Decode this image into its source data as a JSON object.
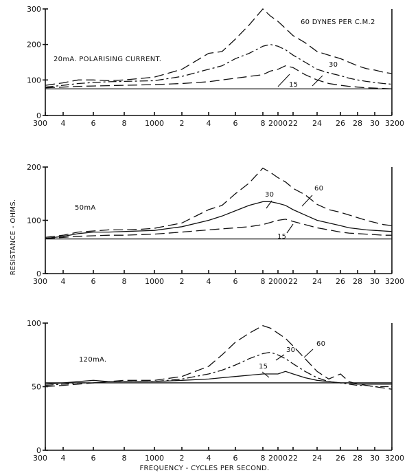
{
  "ylabel": "RESISTANCE - OHMS.",
  "xlabel": "FREQUENCY - CYCLES PER SECOND.",
  "chart_data": [
    {
      "type": "line",
      "annotation": "20mA. POLARISING CURRENT.",
      "x_tick_labels": [
        "300",
        "4",
        "6",
        "8",
        "1000",
        "2",
        "4",
        "6",
        "8",
        "2000",
        "22",
        "24",
        "26",
        "28",
        "30",
        "3200"
      ],
      "xlim": [
        300,
        3200
      ],
      "y_ticks": [
        0,
        100,
        200,
        300
      ],
      "ylim": [
        0,
        300
      ],
      "baseline": 75,
      "series": [
        {
          "name": "60 DYNES PER C.M.2",
          "dash": "long",
          "x": [
            300,
            400,
            500,
            600,
            700,
            800,
            900,
            1000,
            1200,
            1400,
            1500,
            1600,
            1700,
            1800,
            1900,
            2000,
            2100,
            2200,
            2300,
            2400,
            2500,
            2600,
            2700,
            2800,
            2900,
            3000,
            3100,
            3200
          ],
          "y": [
            85,
            92,
            100,
            100,
            98,
            100,
            104,
            108,
            130,
            175,
            180,
            215,
            255,
            300,
            280,
            265,
            245,
            225,
            205,
            180,
            170,
            160,
            150,
            140,
            132,
            128,
            122,
            118
          ]
        },
        {
          "name": "30",
          "dash": "dashdot",
          "x": [
            300,
            400,
            500,
            600,
            700,
            800,
            900,
            1000,
            1200,
            1400,
            1500,
            1600,
            1700,
            1800,
            1900,
            2000,
            2100,
            2200,
            2300,
            2400,
            2500,
            2600,
            2700,
            2800,
            2900,
            3000,
            3100,
            3200
          ],
          "y": [
            80,
            85,
            90,
            93,
            95,
            96,
            97,
            98,
            110,
            130,
            140,
            160,
            175,
            195,
            200,
            195,
            185,
            170,
            150,
            130,
            120,
            112,
            105,
            100,
            96,
            93,
            90,
            88
          ]
        },
        {
          "name": "15",
          "dash": "long",
          "x": [
            300,
            400,
            500,
            600,
            700,
            800,
            900,
            1000,
            1200,
            1400,
            1500,
            1600,
            1700,
            1800,
            1900,
            2000,
            2100,
            2200,
            2300,
            2400,
            2500,
            2600,
            2700,
            2800,
            2900,
            3000,
            3100,
            3200
          ],
          "y": [
            78,
            80,
            82,
            83,
            84,
            85,
            86,
            87,
            90,
            95,
            100,
            105,
            110,
            115,
            125,
            130,
            140,
            135,
            115,
            100,
            90,
            85,
            82,
            80,
            78,
            77,
            76,
            75
          ]
        }
      ]
    },
    {
      "type": "line",
      "annotation": "50mA",
      "x_tick_labels": [
        "300",
        "4",
        "6",
        "8",
        "1000",
        "2",
        "4",
        "6",
        "8",
        "2000",
        "22",
        "24",
        "26",
        "28",
        "30",
        "3200"
      ],
      "xlim": [
        300,
        3200
      ],
      "y_ticks": [
        0,
        100,
        200
      ],
      "ylim": [
        0,
        200
      ],
      "baseline": 65,
      "series": [
        {
          "name": "60",
          "dash": "long",
          "x": [
            300,
            400,
            500,
            600,
            700,
            800,
            900,
            1000,
            1200,
            1400,
            1500,
            1600,
            1700,
            1800,
            1900,
            2000,
            2100,
            2200,
            2300,
            2400,
            2500,
            2600,
            2700,
            2800,
            2900,
            3000,
            3100,
            3200
          ],
          "y": [
            68,
            72,
            78,
            80,
            82,
            82,
            83,
            85,
            95,
            120,
            128,
            150,
            170,
            198,
            190,
            180,
            172,
            160,
            148,
            130,
            120,
            115,
            110,
            105,
            100,
            96,
            92,
            90
          ]
        },
        {
          "name": "30",
          "dash": "solid",
          "x": [
            300,
            400,
            500,
            600,
            700,
            800,
            900,
            1000,
            1200,
            1400,
            1500,
            1600,
            1700,
            1800,
            1900,
            2000,
            2100,
            2200,
            2300,
            2400,
            2500,
            2600,
            2700,
            2800,
            2900,
            3000,
            3100,
            3200
          ],
          "y": [
            66,
            70,
            75,
            78,
            78,
            79,
            80,
            81,
            88,
            100,
            108,
            118,
            128,
            135,
            135,
            132,
            128,
            120,
            110,
            100,
            95,
            90,
            86,
            84,
            82,
            81,
            80,
            79
          ]
        },
        {
          "name": "15",
          "dash": "long",
          "x": [
            300,
            400,
            500,
            600,
            700,
            800,
            900,
            1000,
            1200,
            1400,
            1500,
            1600,
            1700,
            1800,
            1900,
            2000,
            2100,
            2200,
            2300,
            2400,
            2500,
            2600,
            2700,
            2800,
            2900,
            3000,
            3100,
            3200
          ],
          "y": [
            66,
            68,
            70,
            71,
            72,
            72,
            73,
            74,
            78,
            82,
            84,
            86,
            88,
            92,
            96,
            100,
            102,
            98,
            92,
            86,
            82,
            78,
            76,
            75,
            74,
            73,
            72,
            72
          ]
        }
      ]
    },
    {
      "type": "line",
      "annotation": "120mA.",
      "x_tick_labels": [
        "300",
        "4",
        "6",
        "8",
        "1000",
        "2",
        "4",
        "6",
        "8",
        "2000",
        "22",
        "24",
        "26",
        "28",
        "30",
        "3200"
      ],
      "xlim": [
        300,
        3200
      ],
      "y_ticks": [
        0,
        50,
        100
      ],
      "ylim": [
        0,
        100
      ],
      "baseline": 53,
      "series": [
        {
          "name": "60",
          "dash": "long",
          "x": [
            300,
            400,
            500,
            600,
            700,
            800,
            900,
            1000,
            1200,
            1400,
            1500,
            1600,
            1700,
            1800,
            1900,
            2000,
            2100,
            2200,
            2300,
            2400,
            2500,
            2600,
            2700,
            2800,
            2900,
            3000,
            3100,
            3200
          ],
          "y": [
            50,
            51,
            52,
            53,
            54,
            55,
            55,
            55,
            58,
            66,
            75,
            85,
            92,
            98,
            96,
            92,
            88,
            82,
            72,
            62,
            56,
            60,
            54,
            52,
            51,
            50,
            49,
            48
          ]
        },
        {
          "name": "30",
          "dash": "dashdot",
          "x": [
            300,
            400,
            500,
            600,
            700,
            800,
            900,
            1000,
            1200,
            1400,
            1500,
            1600,
            1700,
            1800,
            1900,
            2000,
            2100,
            2200,
            2300,
            2400,
            2500,
            2600,
            2700,
            2800,
            2900,
            3000,
            3100,
            3200
          ],
          "y": [
            51,
            52,
            53,
            53,
            54,
            54,
            54,
            54,
            56,
            60,
            63,
            67,
            72,
            76,
            77,
            75,
            72,
            68,
            62,
            57,
            54,
            53,
            52,
            51,
            51,
            50,
            50,
            50
          ]
        },
        {
          "name": "15",
          "dash": "solid",
          "x": [
            300,
            400,
            500,
            600,
            700,
            800,
            900,
            1000,
            1200,
            1400,
            1500,
            1600,
            1700,
            1800,
            1900,
            2000,
            2100,
            2200,
            2300,
            2400,
            2500,
            2600,
            2700,
            2800,
            2900,
            3000,
            3100,
            3200
          ],
          "y": [
            52,
            53,
            54,
            55,
            54,
            54,
            54,
            54,
            55,
            56,
            57,
            58,
            59,
            60,
            60,
            60,
            62,
            60,
            57,
            55,
            54,
            53,
            53,
            52,
            52,
            52,
            52,
            52
          ]
        }
      ]
    }
  ]
}
